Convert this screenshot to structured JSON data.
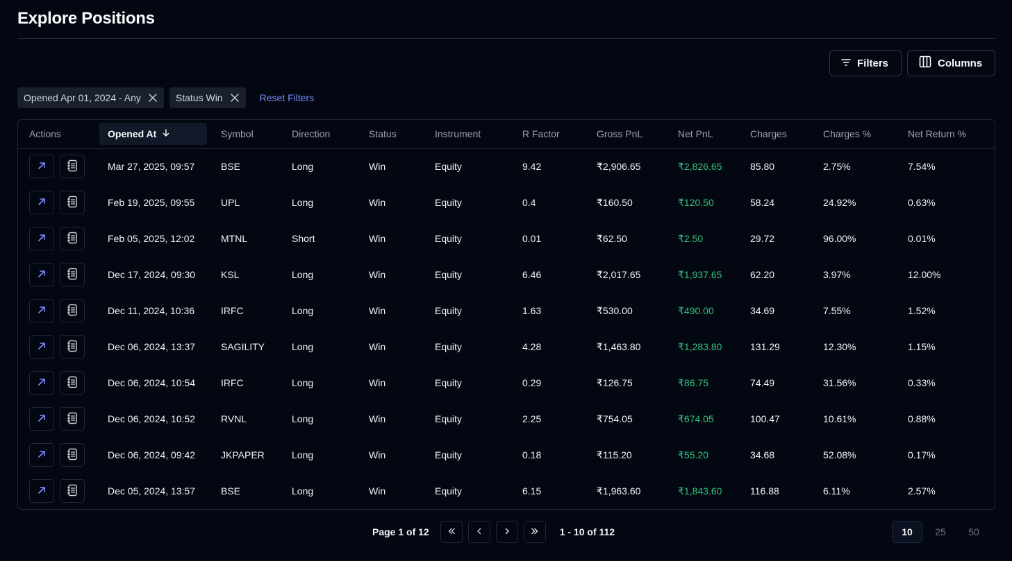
{
  "page": {
    "title": "Explore Positions"
  },
  "toolbar": {
    "filters_label": "Filters",
    "columns_label": "Columns"
  },
  "filters": {
    "chips": [
      {
        "label": "Opened Apr 01, 2024 - Any"
      },
      {
        "label": "Status Win"
      }
    ],
    "reset_label": "Reset Filters"
  },
  "table": {
    "columns": {
      "actions": "Actions",
      "opened_at": "Opened At",
      "symbol": "Symbol",
      "direction": "Direction",
      "status": "Status",
      "instrument": "Instrument",
      "r_factor": "R Factor",
      "gross_pnl": "Gross PnL",
      "net_pnl": "Net PnL",
      "charges": "Charges",
      "charges_pct": "Charges %",
      "net_return_pct": "Net Return %"
    },
    "rows": [
      {
        "opened_at": "Mar 27, 2025, 09:57",
        "symbol": "BSE",
        "direction": "Long",
        "status": "Win",
        "instrument": "Equity",
        "r_factor": "9.42",
        "gross_pnl": "₹2,906.65",
        "net_pnl": "₹2,826.65",
        "charges": "85.80",
        "charges_pct": "2.75%",
        "net_return_pct": "7.54%"
      },
      {
        "opened_at": "Feb 19, 2025, 09:55",
        "symbol": "UPL",
        "direction": "Long",
        "status": "Win",
        "instrument": "Equity",
        "r_factor": "0.4",
        "gross_pnl": "₹160.50",
        "net_pnl": "₹120.50",
        "charges": "58.24",
        "charges_pct": "24.92%",
        "net_return_pct": "0.63%"
      },
      {
        "opened_at": "Feb 05, 2025, 12:02",
        "symbol": "MTNL",
        "direction": "Short",
        "status": "Win",
        "instrument": "Equity",
        "r_factor": "0.01",
        "gross_pnl": "₹62.50",
        "net_pnl": "₹2.50",
        "charges": "29.72",
        "charges_pct": "96.00%",
        "net_return_pct": "0.01%"
      },
      {
        "opened_at": "Dec 17, 2024, 09:30",
        "symbol": "KSL",
        "direction": "Long",
        "status": "Win",
        "instrument": "Equity",
        "r_factor": "6.46",
        "gross_pnl": "₹2,017.65",
        "net_pnl": "₹1,937.65",
        "charges": "62.20",
        "charges_pct": "3.97%",
        "net_return_pct": "12.00%"
      },
      {
        "opened_at": "Dec 11, 2024, 10:36",
        "symbol": "IRFC",
        "direction": "Long",
        "status": "Win",
        "instrument": "Equity",
        "r_factor": "1.63",
        "gross_pnl": "₹530.00",
        "net_pnl": "₹490.00",
        "charges": "34.69",
        "charges_pct": "7.55%",
        "net_return_pct": "1.52%"
      },
      {
        "opened_at": "Dec 06, 2024, 13:37",
        "symbol": "SAGILITY",
        "direction": "Long",
        "status": "Win",
        "instrument": "Equity",
        "r_factor": "4.28",
        "gross_pnl": "₹1,463.80",
        "net_pnl": "₹1,283.80",
        "charges": "131.29",
        "charges_pct": "12.30%",
        "net_return_pct": "1.15%"
      },
      {
        "opened_at": "Dec 06, 2024, 10:54",
        "symbol": "IRFC",
        "direction": "Long",
        "status": "Win",
        "instrument": "Equity",
        "r_factor": "0.29",
        "gross_pnl": "₹126.75",
        "net_pnl": "₹86.75",
        "charges": "74.49",
        "charges_pct": "31.56%",
        "net_return_pct": "0.33%"
      },
      {
        "opened_at": "Dec 06, 2024, 10:52",
        "symbol": "RVNL",
        "direction": "Long",
        "status": "Win",
        "instrument": "Equity",
        "r_factor": "2.25",
        "gross_pnl": "₹754.05",
        "net_pnl": "₹674.05",
        "charges": "100.47",
        "charges_pct": "10.61%",
        "net_return_pct": "0.88%"
      },
      {
        "opened_at": "Dec 06, 2024, 09:42",
        "symbol": "JKPAPER",
        "direction": "Long",
        "status": "Win",
        "instrument": "Equity",
        "r_factor": "0.18",
        "gross_pnl": "₹115.20",
        "net_pnl": "₹55.20",
        "charges": "34.68",
        "charges_pct": "52.08%",
        "net_return_pct": "0.17%"
      },
      {
        "opened_at": "Dec 05, 2024, 13:57",
        "symbol": "BSE",
        "direction": "Long",
        "status": "Win",
        "instrument": "Equity",
        "r_factor": "6.15",
        "gross_pnl": "₹1,963.60",
        "net_pnl": "₹1,843.60",
        "charges": "116.88",
        "charges_pct": "6.11%",
        "net_return_pct": "2.57%"
      }
    ]
  },
  "pagination": {
    "page_label": "Page 1 of 12",
    "range_label": "1 - 10 of 112",
    "page_sizes": [
      "10",
      "25",
      "50"
    ],
    "selected_page_size": "10"
  },
  "colors": {
    "background": "#030712",
    "accent_link": "#7c8cf8",
    "positive": "#34c27a",
    "icon_blue": "#7b8cff"
  }
}
